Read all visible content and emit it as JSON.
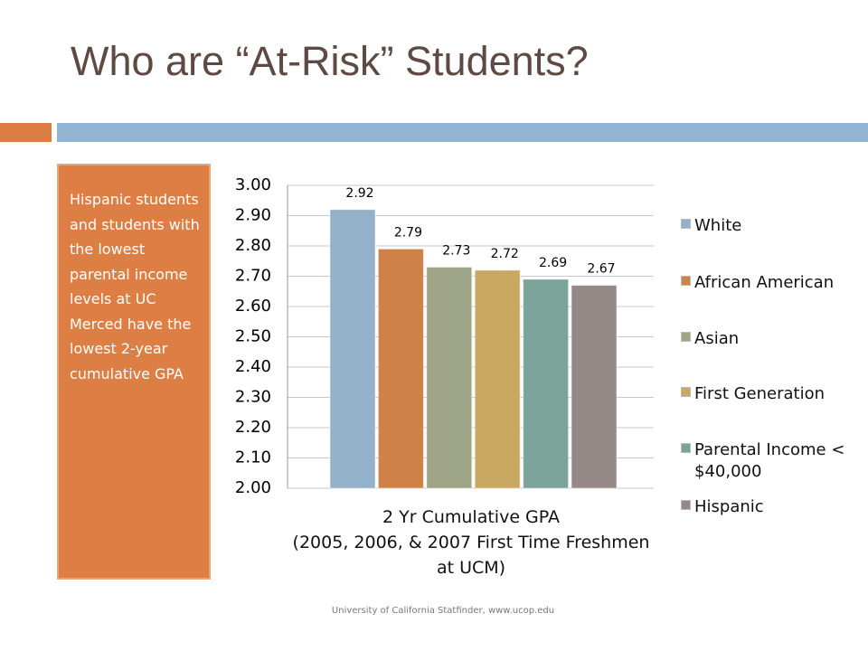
{
  "title": "Who are “At-Risk” Students?",
  "sidebar_text": "Hispanic students and students with the lowest parental income levels at UC Merced have the lowest 2-year cumulative GPA",
  "source": "University of California Statfinder, www.ucop.edu",
  "chart_data": {
    "type": "bar",
    "categories": [
      "2 Yr Cumulative GPA\n(2005, 2006, & 2007 First Time Freshmen\nat UCM)"
    ],
    "series": [
      {
        "name": "White",
        "color": "#93b1c8",
        "values": [
          2.92
        ]
      },
      {
        "name": "African American",
        "color": "#cf8148",
        "values": [
          2.79
        ]
      },
      {
        "name": "Asian",
        "color": "#9ea587",
        "values": [
          2.73
        ]
      },
      {
        "name": "First Generation",
        "color": "#c9a862",
        "values": [
          2.72
        ]
      },
      {
        "name": "Parental Income < $40,000",
        "color": "#7ba39a",
        "values": [
          2.69
        ]
      },
      {
        "name": "Hispanic",
        "color": "#958a88",
        "values": [
          2.67
        ]
      }
    ],
    "ylim": [
      2,
      3
    ],
    "yticks": [
      {
        "value": 2,
        "label": "2.00"
      },
      {
        "value": 2.1,
        "label": "2.10"
      },
      {
        "value": 2.2,
        "label": "2.20"
      },
      {
        "value": 2.3,
        "label": "2.30"
      },
      {
        "value": 2.4,
        "label": "2.40"
      },
      {
        "value": 2.5,
        "label": "2.50"
      },
      {
        "value": 2.6,
        "label": "2.60"
      },
      {
        "value": 2.7,
        "label": "2.70"
      },
      {
        "value": 2.8,
        "label": "2.80"
      },
      {
        "value": 2.9,
        "label": "2.90"
      },
      {
        "value": 3,
        "label": "3.00"
      }
    ],
    "grid": true
  }
}
